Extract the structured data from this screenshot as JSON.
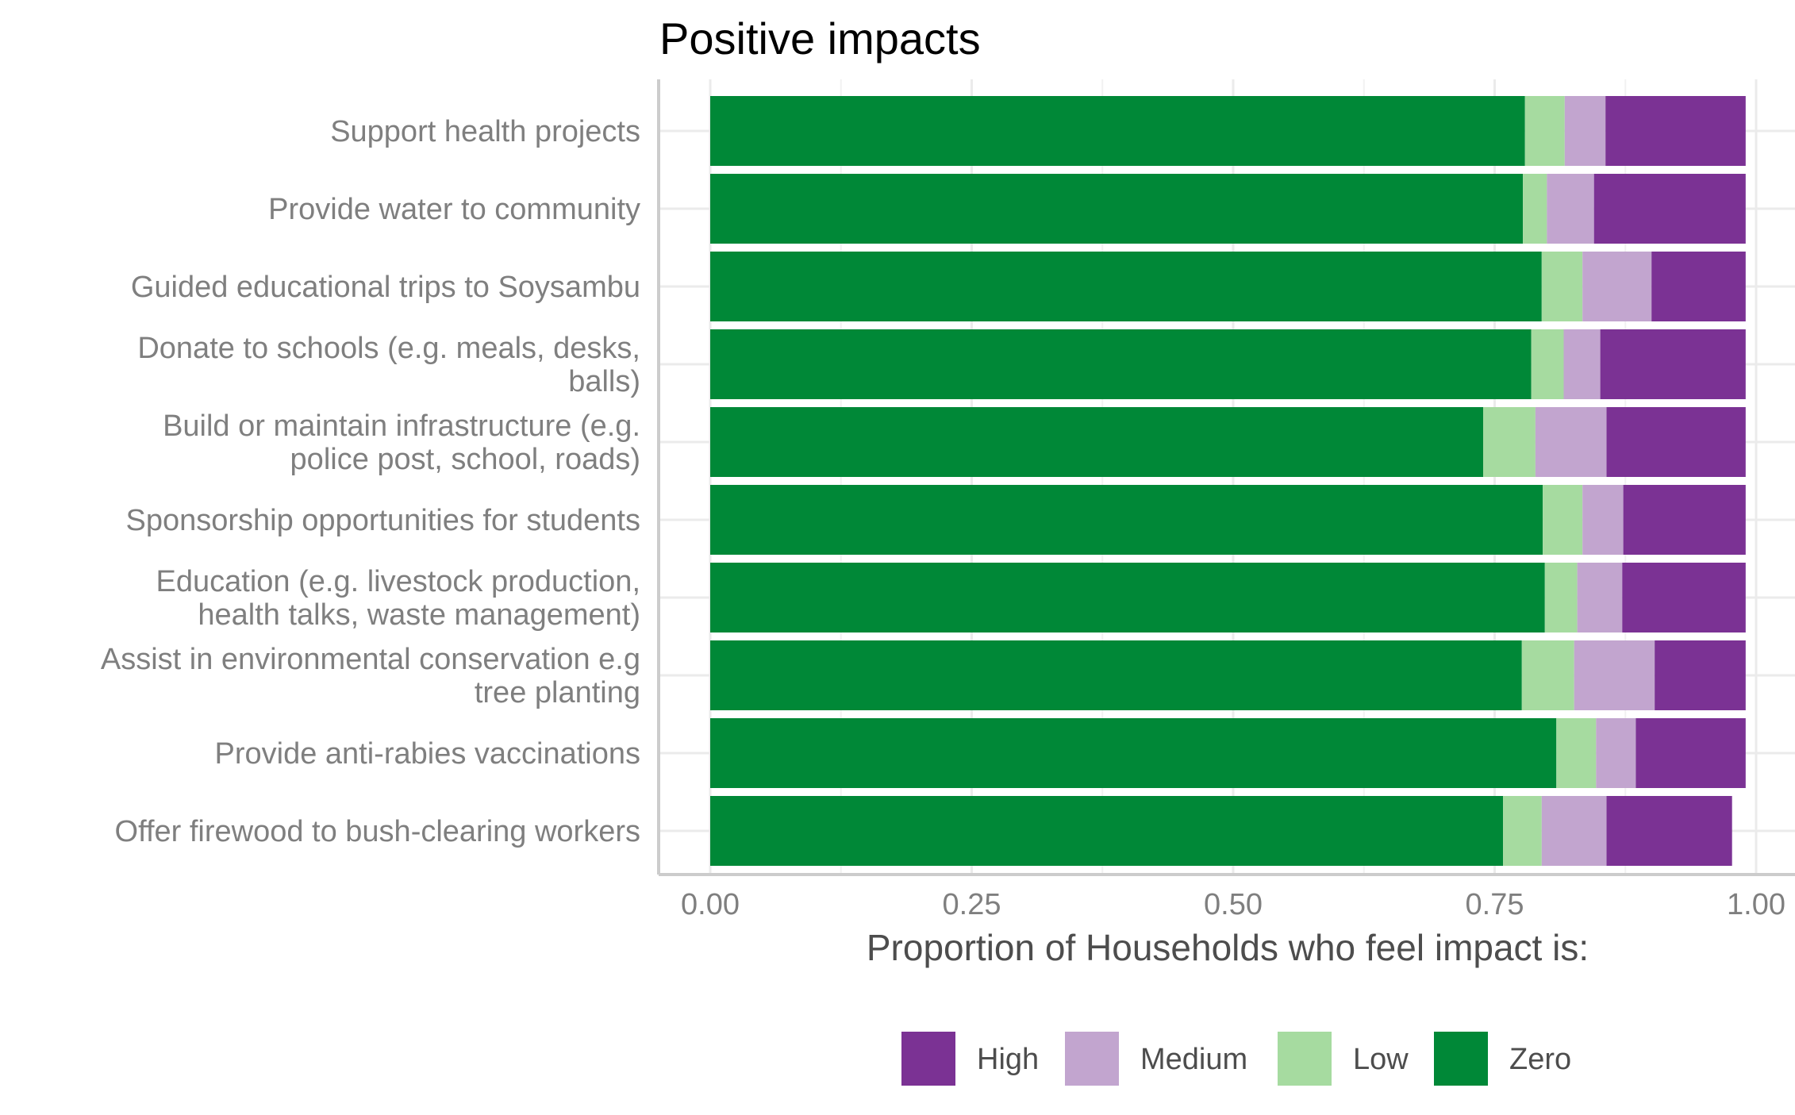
{
  "chart_data": {
    "type": "bar",
    "orientation": "horizontal",
    "stacked": true,
    "title": "Positive impacts",
    "xlabel": "Proportion of Households who feel impact is:",
    "ylabel": "",
    "xlim": [
      0,
      1
    ],
    "xticks": [
      "0.00",
      "0.25",
      "0.50",
      "0.75",
      "1.00"
    ],
    "grid": true,
    "legend_position": "bottom",
    "categories": [
      [
        "Support health projects"
      ],
      [
        "Provide water to community"
      ],
      [
        "Guided educational trips to Soysambu"
      ],
      [
        "Donate to schools (e.g. meals, desks,",
        "balls)"
      ],
      [
        "Build or maintain infrastructure (e.g.",
        "police post, school, roads)"
      ],
      [
        "Sponsorship opportunities for students"
      ],
      [
        "Education (e.g. livestock production,",
        "health talks, waste management)"
      ],
      [
        "Assist in environmental conservation e.g",
        "tree planting"
      ],
      [
        "Provide anti-rabies vaccinations"
      ],
      [
        "Offer firewood to bush-clearing workers"
      ]
    ],
    "series": [
      {
        "name": "Zero",
        "color": "#008837",
        "values": [
          0.779,
          0.777,
          0.795,
          0.785,
          0.739,
          0.796,
          0.798,
          0.776,
          0.809,
          0.758
        ]
      },
      {
        "name": "Low",
        "color": "#a6dba0",
        "values": [
          0.038,
          0.023,
          0.039,
          0.031,
          0.05,
          0.038,
          0.031,
          0.05,
          0.038,
          0.037
        ]
      },
      {
        "name": "Medium",
        "color": "#c2a5cf",
        "values": [
          0.039,
          0.045,
          0.066,
          0.035,
          0.068,
          0.039,
          0.043,
          0.077,
          0.038,
          0.062
        ]
      },
      {
        "name": "High",
        "color": "#7b3294",
        "values": [
          0.134,
          0.145,
          0.09,
          0.139,
          0.133,
          0.117,
          0.118,
          0.087,
          0.105,
          0.12
        ]
      }
    ],
    "legend": [
      "High",
      "Medium",
      "Low",
      "Zero"
    ]
  }
}
